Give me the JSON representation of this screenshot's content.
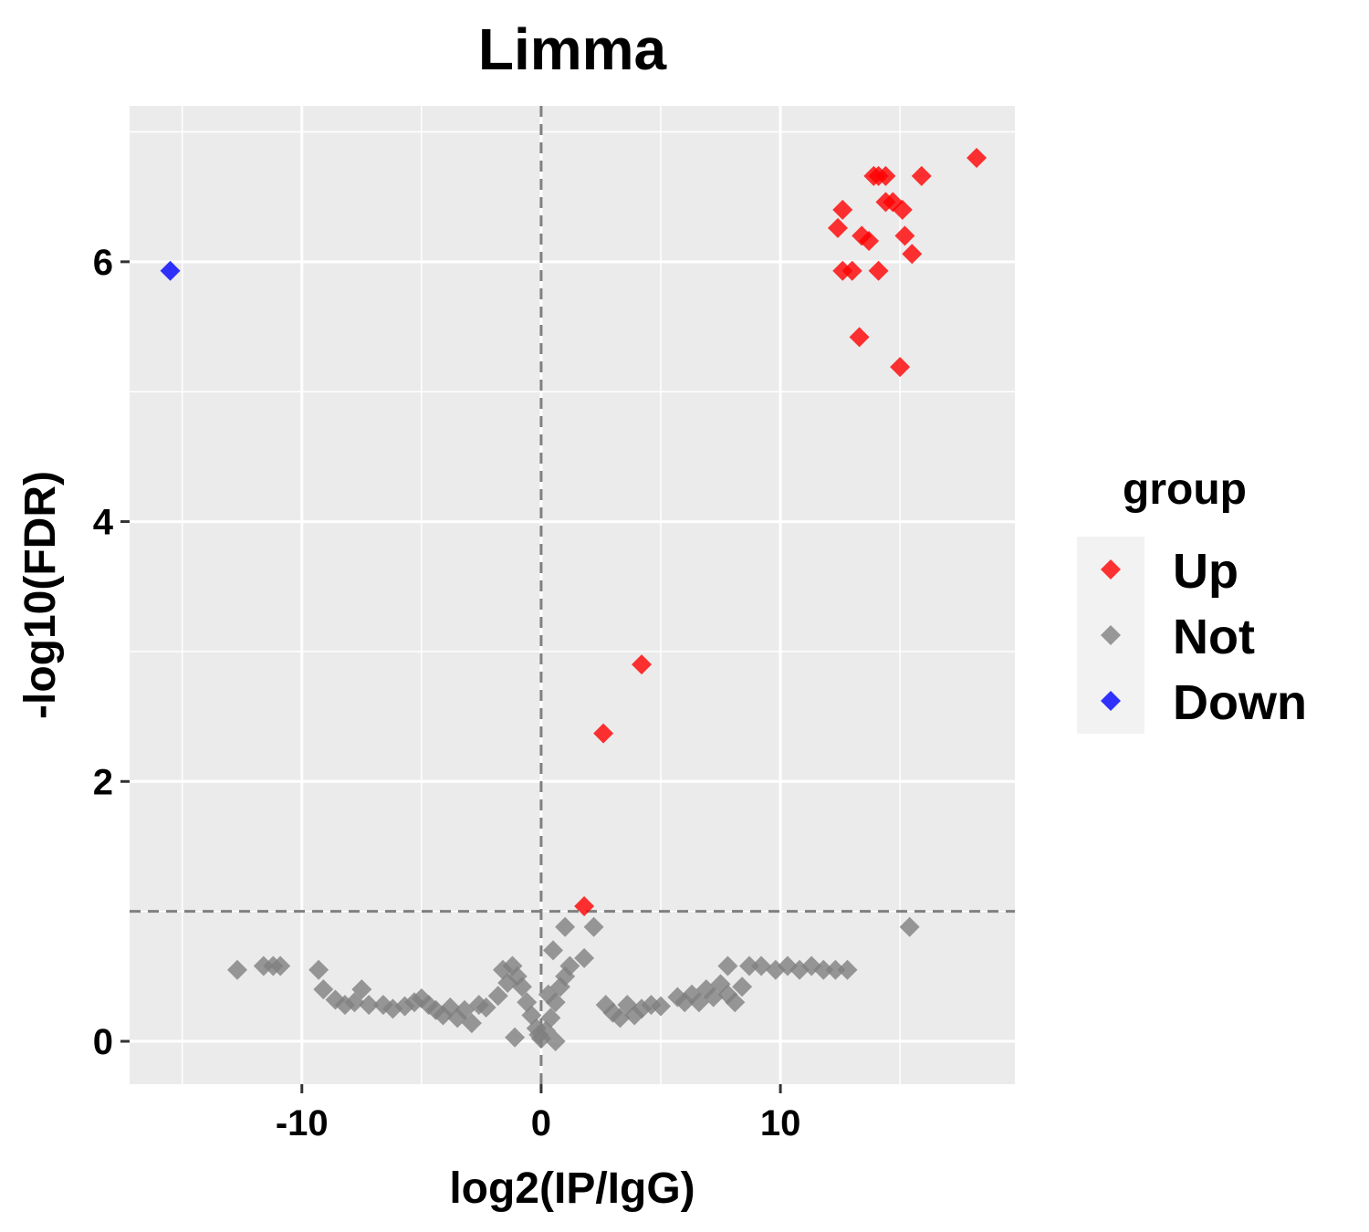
{
  "chart_data": {
    "type": "scatter",
    "title": "Limma",
    "xlabel": "log2(IP/IgG)",
    "ylabel": "-log10(FDR)",
    "xlim": [
      -17.2,
      19.8
    ],
    "ylim": [
      -0.33,
      7.2
    ],
    "x_ticks": [
      -10,
      0,
      10
    ],
    "y_ticks": [
      0,
      2,
      4,
      6
    ],
    "x_tick_labels": [
      "-10",
      "0",
      "10"
    ],
    "y_tick_labels": [
      "0",
      "2",
      "4",
      "6"
    ],
    "grid": true,
    "vline": 0,
    "hline": 1,
    "legend": {
      "title": "group",
      "position": "right"
    },
    "series": [
      {
        "name": "Up",
        "color": "#ff0000",
        "points": [
          [
            18.2,
            6.8
          ],
          [
            13.9,
            6.66
          ],
          [
            14.1,
            6.66
          ],
          [
            14.4,
            6.66
          ],
          [
            15.9,
            6.66
          ],
          [
            12.6,
            6.4
          ],
          [
            14.4,
            6.46
          ],
          [
            14.7,
            6.46
          ],
          [
            15.1,
            6.4
          ],
          [
            12.4,
            6.26
          ],
          [
            13.4,
            6.2
          ],
          [
            13.7,
            6.16
          ],
          [
            15.2,
            6.2
          ],
          [
            15.5,
            6.06
          ],
          [
            12.6,
            5.93
          ],
          [
            13.0,
            5.93
          ],
          [
            14.1,
            5.93
          ],
          [
            13.3,
            5.42
          ],
          [
            15.0,
            5.19
          ],
          [
            4.2,
            2.9
          ],
          [
            2.6,
            2.37
          ],
          [
            1.8,
            1.04
          ]
        ]
      },
      {
        "name": "Not",
        "color": "#808080",
        "points": [
          [
            -12.7,
            0.55
          ],
          [
            -11.6,
            0.58
          ],
          [
            -11.2,
            0.58
          ],
          [
            -10.9,
            0.58
          ],
          [
            -9.3,
            0.55
          ],
          [
            -9.1,
            0.4
          ],
          [
            -8.6,
            0.32
          ],
          [
            -8.2,
            0.28
          ],
          [
            -7.8,
            0.3
          ],
          [
            -7.5,
            0.4
          ],
          [
            -7.2,
            0.28
          ],
          [
            -6.6,
            0.28
          ],
          [
            -6.2,
            0.25
          ],
          [
            -5.7,
            0.27
          ],
          [
            -5.3,
            0.3
          ],
          [
            -5.0,
            0.33
          ],
          [
            -4.7,
            0.28
          ],
          [
            -4.4,
            0.24
          ],
          [
            -4.1,
            0.2
          ],
          [
            -3.8,
            0.26
          ],
          [
            -3.5,
            0.18
          ],
          [
            -3.2,
            0.24
          ],
          [
            -2.9,
            0.14
          ],
          [
            -2.6,
            0.28
          ],
          [
            -2.3,
            0.26
          ],
          [
            -1.8,
            0.35
          ],
          [
            -1.6,
            0.55
          ],
          [
            -1.4,
            0.45
          ],
          [
            -1.2,
            0.58
          ],
          [
            -1.0,
            0.5
          ],
          [
            -0.8,
            0.42
          ],
          [
            -0.6,
            0.3
          ],
          [
            -0.4,
            0.2
          ],
          [
            -0.2,
            0.1
          ],
          [
            -0.1,
            0.05
          ],
          [
            0.0,
            0.02
          ],
          [
            0.2,
            0.08
          ],
          [
            0.4,
            0.18
          ],
          [
            0.6,
            0.3
          ],
          [
            0.8,
            0.42
          ],
          [
            1.0,
            0.5
          ],
          [
            1.2,
            0.58
          ],
          [
            0.5,
            0.7
          ],
          [
            1.0,
            0.88
          ],
          [
            1.8,
            0.64
          ],
          [
            2.2,
            0.88
          ],
          [
            0.6,
            0.0
          ],
          [
            -1.1,
            0.03
          ],
          [
            0.3,
            0.36
          ],
          [
            2.7,
            0.28
          ],
          [
            3.0,
            0.22
          ],
          [
            3.3,
            0.18
          ],
          [
            3.6,
            0.28
          ],
          [
            3.9,
            0.2
          ],
          [
            4.2,
            0.25
          ],
          [
            4.6,
            0.28
          ],
          [
            5.0,
            0.27
          ],
          [
            5.7,
            0.34
          ],
          [
            6.0,
            0.3
          ],
          [
            6.3,
            0.36
          ],
          [
            6.6,
            0.3
          ],
          [
            6.9,
            0.4
          ],
          [
            7.2,
            0.34
          ],
          [
            7.5,
            0.44
          ],
          [
            7.8,
            0.36
          ],
          [
            7.8,
            0.58
          ],
          [
            8.1,
            0.3
          ],
          [
            8.4,
            0.42
          ],
          [
            8.7,
            0.58
          ],
          [
            9.2,
            0.58
          ],
          [
            9.8,
            0.55
          ],
          [
            10.3,
            0.58
          ],
          [
            10.8,
            0.55
          ],
          [
            11.3,
            0.58
          ],
          [
            11.8,
            0.55
          ],
          [
            12.3,
            0.55
          ],
          [
            12.8,
            0.55
          ],
          [
            15.4,
            0.88
          ]
        ]
      },
      {
        "name": "Down",
        "color": "#0000ff",
        "points": [
          [
            -15.5,
            5.93
          ]
        ]
      }
    ]
  }
}
